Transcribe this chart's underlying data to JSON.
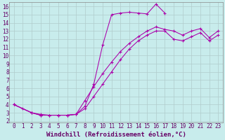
{
  "background_color": "#c8ecec",
  "line_color": "#aa00aa",
  "grid_color": "#b0cccc",
  "axis_label_color": "#660066",
  "tick_color": "#660066",
  "xlabel": "Windchill (Refroidissement éolien,°C)",
  "xlim": [
    -0.5,
    23.5
  ],
  "ylim": [
    1.8,
    16.5
  ],
  "xticks": [
    0,
    1,
    2,
    3,
    4,
    5,
    6,
    7,
    8,
    9,
    10,
    11,
    12,
    13,
    14,
    15,
    16,
    17,
    18,
    19,
    20,
    21,
    22,
    23
  ],
  "yticks": [
    2,
    3,
    4,
    5,
    6,
    7,
    8,
    9,
    10,
    11,
    12,
    13,
    14,
    15,
    16
  ],
  "line1_x": [
    0,
    1,
    2,
    3,
    4,
    5,
    6,
    7,
    8,
    9,
    10,
    11,
    12,
    13,
    14,
    15,
    16,
    17
  ],
  "line1_y": [
    4.0,
    3.5,
    3.0,
    2.8,
    2.7,
    2.7,
    2.7,
    2.8,
    3.8,
    6.5,
    11.3,
    15.0,
    15.2,
    15.3,
    15.2,
    15.1,
    16.3,
    15.2
  ],
  "line2_x": [
    0,
    2,
    3,
    4,
    5,
    6,
    7,
    8,
    9,
    10,
    11,
    12,
    13,
    14,
    15,
    16,
    17,
    18,
    19,
    20,
    21,
    22,
    23
  ],
  "line2_y": [
    4.0,
    3.0,
    2.7,
    2.7,
    2.7,
    2.7,
    2.8,
    4.5,
    6.2,
    7.8,
    9.2,
    10.5,
    11.5,
    12.3,
    13.0,
    13.5,
    13.2,
    13.0,
    12.5,
    13.0,
    13.3,
    12.2,
    13.0
  ],
  "line3_x": [
    0,
    2,
    3,
    4,
    5,
    6,
    7,
    8,
    9,
    10,
    11,
    12,
    13,
    14,
    15,
    16,
    17,
    18,
    19,
    20,
    21,
    22,
    23
  ],
  "line3_y": [
    4.0,
    3.0,
    2.7,
    2.7,
    2.7,
    2.7,
    2.8,
    3.5,
    5.0,
    6.5,
    8.0,
    9.5,
    10.8,
    11.8,
    12.5,
    13.0,
    13.0,
    12.0,
    11.8,
    12.3,
    12.8,
    11.8,
    12.5
  ],
  "fontsize_xlabel": 6.5,
  "fontsize_ticks": 5.5,
  "marker": "+"
}
